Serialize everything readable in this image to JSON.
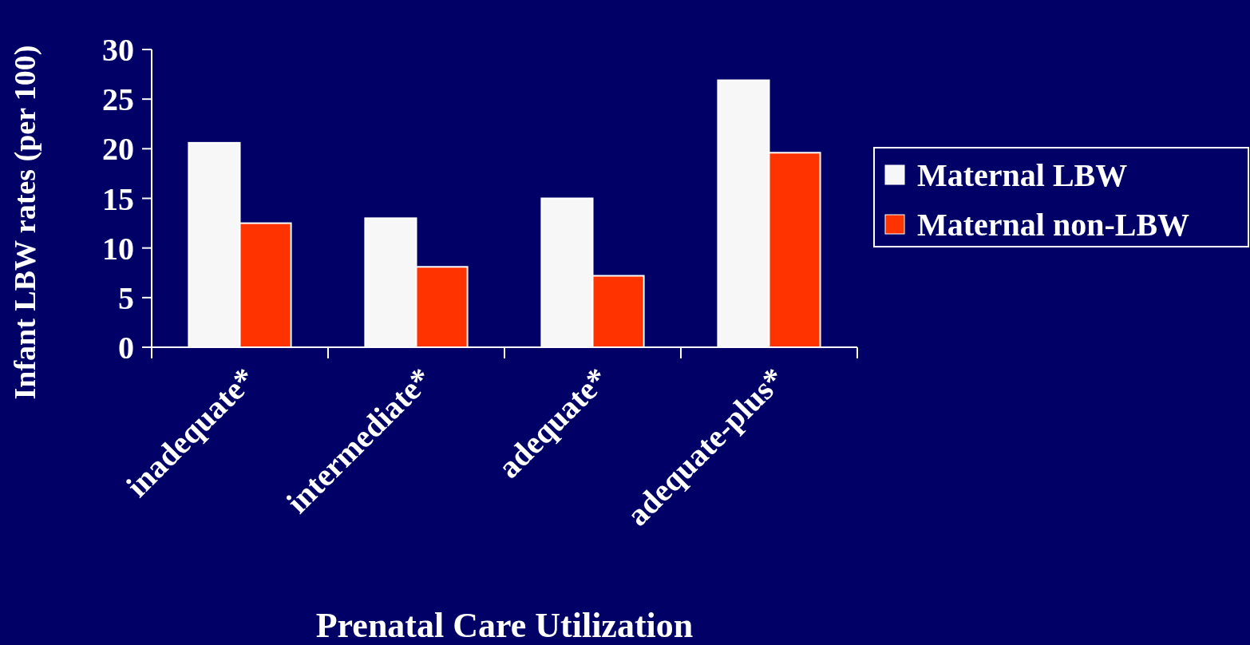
{
  "chart_data": {
    "type": "bar",
    "xlabel": "Prenatal Care Utilization",
    "ylabel": "Infant LBW rates (per 100)",
    "categories": [
      "inadequate*",
      "intermediate*",
      "adequate*",
      "adequate-plus*"
    ],
    "series": [
      {
        "name": "Maternal LBW",
        "color": "#f7f7f7",
        "values": [
          20.6,
          13.0,
          15.0,
          26.9
        ]
      },
      {
        "name": "Maternal non-LBW",
        "color": "#ff3300",
        "values": [
          12.5,
          8.1,
          7.2,
          19.6
        ]
      }
    ],
    "ylim": [
      0,
      30
    ],
    "yticks": [
      0,
      5,
      10,
      15,
      20,
      25,
      30
    ],
    "grid": false,
    "legend": "right"
  }
}
